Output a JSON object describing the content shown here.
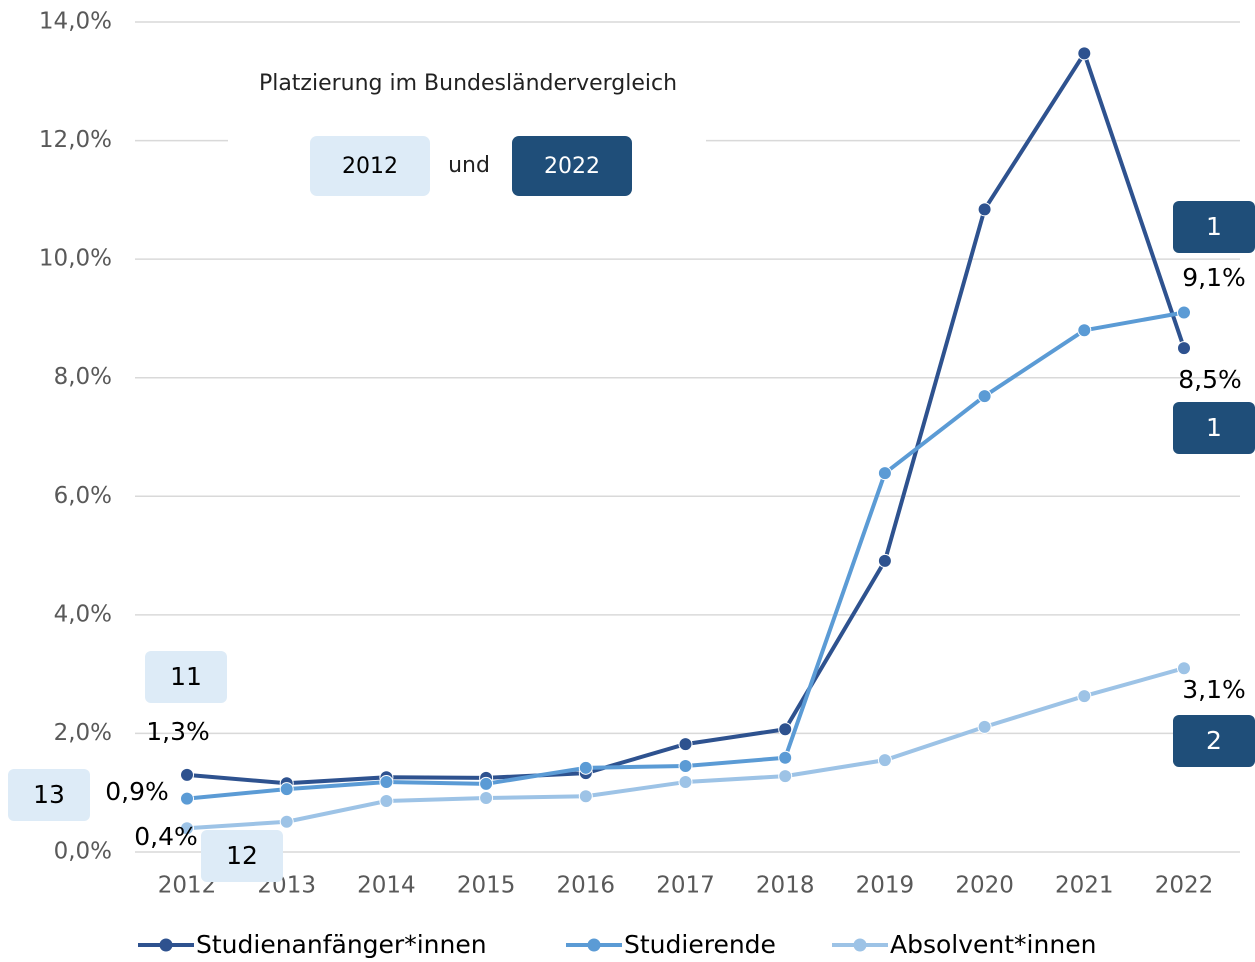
{
  "chart_data": {
    "type": "line",
    "x": [
      "2012",
      "2013",
      "2014",
      "2015",
      "2016",
      "2017",
      "2018",
      "2019",
      "2020",
      "2021",
      "2022"
    ],
    "ylim": [
      0,
      14
    ],
    "yticks": [
      {
        "value": 0,
        "label": "0,0%"
      },
      {
        "value": 2,
        "label": "2,0%"
      },
      {
        "value": 4,
        "label": "4,0%"
      },
      {
        "value": 6,
        "label": "6,0%"
      },
      {
        "value": 8,
        "label": "8,0%"
      },
      {
        "value": 10,
        "label": "10,0%"
      },
      {
        "value": 12,
        "label": "12,0%"
      },
      {
        "value": 14,
        "label": "14,0%"
      }
    ],
    "grid": true,
    "legend": "bottom",
    "annotation": {
      "title": "Platzierung im Bundesländervergleich",
      "first_year": "2012",
      "joiner": "und",
      "last_year": "2022",
      "first_color": "#ddebf7",
      "last_color": "#1f4e79"
    },
    "series": [
      {
        "name": "Studienanfänger*innen",
        "color": "#2e528f",
        "values": [
          1.3,
          1.16,
          1.26,
          1.25,
          1.33,
          1.82,
          2.07,
          4.91,
          10.84,
          13.47,
          8.5
        ],
        "value_labels": [
          "1,3%",
          null,
          null,
          null,
          null,
          null,
          null,
          null,
          null,
          null,
          "8,5%"
        ],
        "rank_first": "11",
        "rank_last": "1"
      },
      {
        "name": "Studierende",
        "color": "#5b9bd5",
        "values": [
          0.9,
          1.06,
          1.18,
          1.15,
          1.42,
          1.45,
          1.59,
          6.39,
          7.69,
          8.8,
          9.1
        ],
        "value_labels": [
          "0,9%",
          null,
          null,
          null,
          null,
          null,
          null,
          null,
          null,
          null,
          "9,1%"
        ],
        "rank_first": "13",
        "rank_last": "1"
      },
      {
        "name": "Absolvent*innen",
        "color": "#9dc3e6",
        "values": [
          0.4,
          0.51,
          0.86,
          0.91,
          0.94,
          1.18,
          1.28,
          1.55,
          2.11,
          2.63,
          3.1
        ],
        "value_labels": [
          "0,4%",
          null,
          null,
          null,
          null,
          null,
          null,
          null,
          null,
          null,
          "3,1%"
        ],
        "rank_first": "12",
        "rank_last": "2"
      }
    ]
  }
}
